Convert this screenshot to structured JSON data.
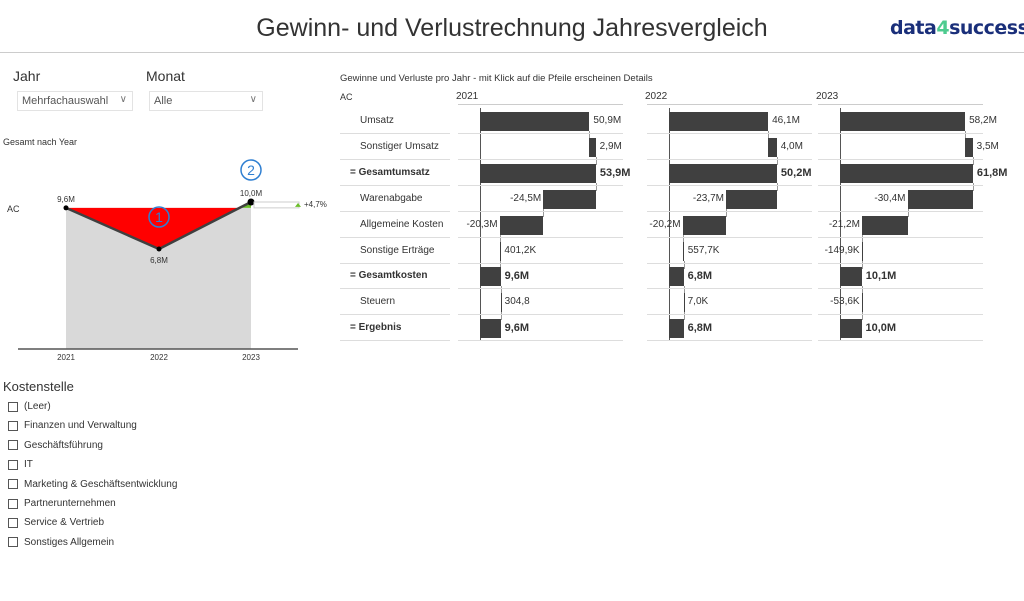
{
  "header": {
    "title": "Gewinn- und Verlustrechnung Jahresvergleich",
    "logo": "data4success"
  },
  "filters": {
    "jahr_label": "Jahr",
    "jahr_value": "Mehrfachauswahl",
    "monat_label": "Monat",
    "monat_value": "Alle"
  },
  "line_chart": {
    "title": "Gesamt nach Year",
    "row_label": "AC",
    "years": [
      "2021",
      "2022",
      "2023"
    ],
    "values": [
      9.6,
      6.8,
      10.0
    ],
    "labels": [
      "9,6M",
      "6,8M",
      "10,0M"
    ],
    "delta": "+4,7%",
    "annotations": [
      "1",
      "2"
    ],
    "colors": {
      "negative": "#ff0000",
      "positive": "#6bbf2a",
      "area": "#d9d9d9",
      "line": "#404040",
      "annotation": "#2f7fd1"
    }
  },
  "kostenstelle": {
    "title": "Kostenstelle",
    "items": [
      "(Leer)",
      "Finanzen und Verwaltung",
      "Geschäftsführung",
      "IT",
      "Marketing & Geschäftsentwicklung",
      "Partnerunternehmen",
      "Service & Vertrieb",
      "Sonstiges Allgemein"
    ]
  },
  "waterfall": {
    "title": "Gewinne und Verluste pro Jahr - mit Klick auf die Pfeile erscheinen Details",
    "row_label": "AC",
    "rows": [
      {
        "label": "Umsatz",
        "type": "delta"
      },
      {
        "label": "Sonstiger Umsatz",
        "type": "delta"
      },
      {
        "label": "= Gesamtumsatz",
        "type": "total"
      },
      {
        "label": "Warenabgabe",
        "type": "delta"
      },
      {
        "label": "Allgemeine Kosten",
        "type": "delta"
      },
      {
        "label": "Sonstige Erträge",
        "type": "delta"
      },
      {
        "label": "= Gesamtkosten",
        "type": "total"
      },
      {
        "label": "Steuern",
        "type": "delta"
      },
      {
        "label": "= Ergebnis",
        "type": "total"
      }
    ],
    "years": [
      {
        "year": "2021",
        "values": [
          50.9,
          2.9,
          53.9,
          -24.5,
          -20.3,
          0.4012,
          9.6,
          0.0003048,
          9.6
        ],
        "labels": [
          "50,9M",
          "2,9M",
          "53,9M",
          "-24,5M",
          "-20,3M",
          "401,2K",
          "9,6M",
          "304,8",
          "9,6M"
        ]
      },
      {
        "year": "2022",
        "values": [
          46.1,
          4.0,
          50.2,
          -23.7,
          -20.2,
          0.5577,
          6.8,
          0.007,
          6.8
        ],
        "labels": [
          "46,1M",
          "4,0M",
          "50,2M",
          "-23,7M",
          "-20,2M",
          "557,7K",
          "6,8M",
          "7,0K",
          "6,8M"
        ]
      },
      {
        "year": "2023",
        "values": [
          58.2,
          3.5,
          61.8,
          -30.4,
          -21.2,
          -0.1499,
          10.1,
          -0.0536,
          10.0
        ],
        "labels": [
          "58,2M",
          "3,5M",
          "61,8M",
          "-30,4M",
          "-21,2M",
          "-149,9K",
          "10,1M",
          "-53,6K",
          "10,0M"
        ]
      }
    ],
    "bar_color": "#404040"
  }
}
